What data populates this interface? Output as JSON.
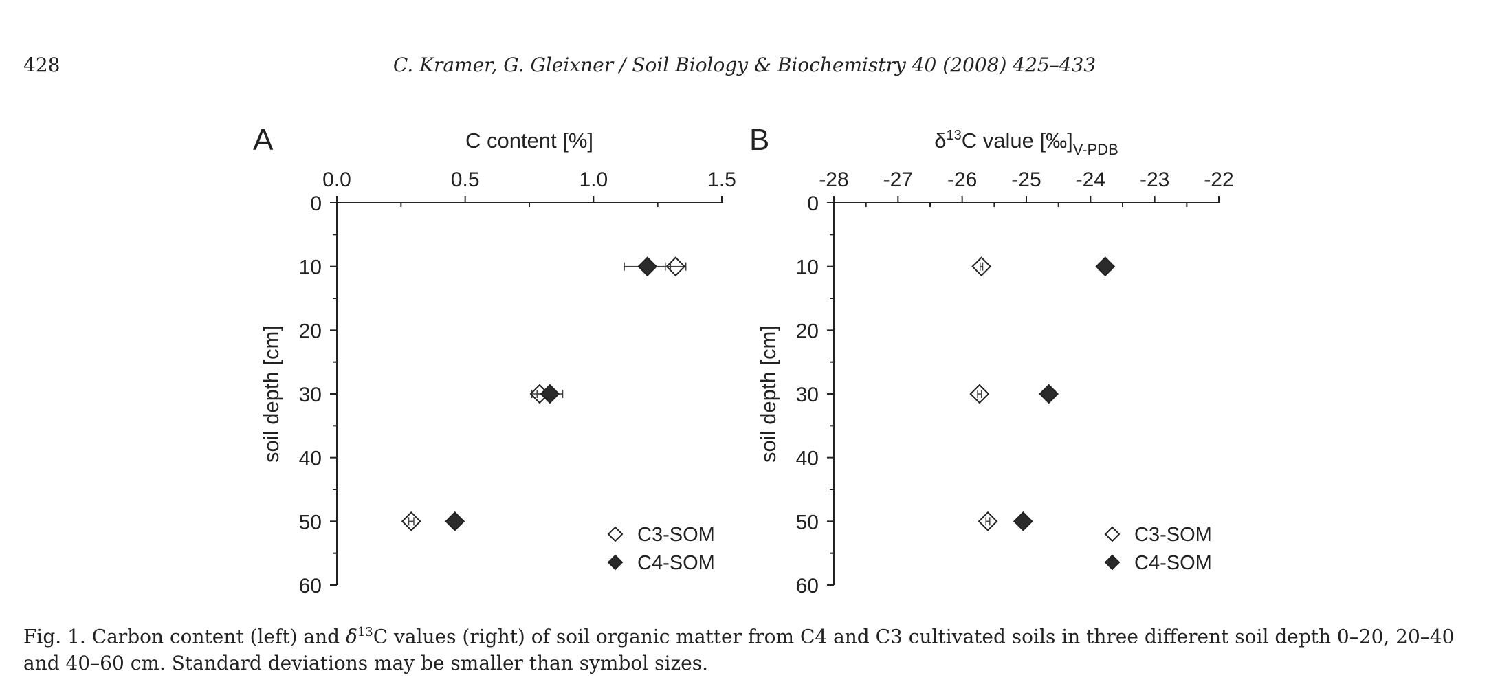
{
  "header": {
    "page_number": "428",
    "running_head": "C. Kramer, G. Gleixner / Soil Biology & Biochemistry 40 (2008) 425–433"
  },
  "caption": {
    "prefix": "Fig. 1.  Carbon content (left) and ",
    "delta": "δ",
    "sup": "13",
    "rest": "C values (right) of soil organic matter from C4 and C3 cultivated soils in three different soil depth 0–20, 20–40 and 40–60 cm. Standard deviations may be smaller than symbol sizes."
  },
  "colors": {
    "c4_fill": "#2b2b2b",
    "c3_fill": "#ffffff",
    "stroke": "#222222"
  },
  "chart_data": [
    {
      "type": "scatter",
      "panel_label": "A",
      "title": "C content [%]",
      "xlabel": "C content [%]",
      "ylabel": "soil depth [cm]",
      "xlim": [
        0,
        1.5
      ],
      "ylim": [
        0,
        60
      ],
      "y_inverted": true,
      "x_axis_position": "top",
      "x_ticks": [
        0.0,
        0.5,
        1.0,
        1.5
      ],
      "x_tick_labels": [
        "0.0",
        "0.5",
        "1.0",
        "1.5"
      ],
      "x_minor_step": 0.25,
      "y_ticks": [
        0,
        10,
        20,
        30,
        40,
        50,
        60
      ],
      "y_tick_labels": [
        "0",
        "10",
        "20",
        "30",
        "40",
        "50",
        "60"
      ],
      "y_minor_step": 5,
      "legend": {
        "position": "bottom-right",
        "entries": [
          "C3-SOM",
          "C4-SOM"
        ]
      },
      "series": [
        {
          "name": "C3-SOM",
          "marker": "open-diamond",
          "points": [
            {
              "x": 1.32,
              "y": 10,
              "err": 0.04
            },
            {
              "x": 0.79,
              "y": 30,
              "err": 0.03
            },
            {
              "x": 0.29,
              "y": 50,
              "err": 0.01
            }
          ]
        },
        {
          "name": "C4-SOM",
          "marker": "filled-diamond",
          "points": [
            {
              "x": 1.21,
              "y": 10,
              "err": 0.09
            },
            {
              "x": 0.83,
              "y": 30,
              "err": 0.05
            },
            {
              "x": 0.46,
              "y": 50,
              "err": 0.01
            }
          ]
        }
      ]
    },
    {
      "type": "scatter",
      "panel_label": "B",
      "title_main": "δ",
      "title_sup": "13",
      "title_rest": "C value [‰]",
      "title_sub": "V-PDB",
      "ylabel": "soil depth [cm]",
      "xlim": [
        -28,
        -22
      ],
      "ylim": [
        0,
        60
      ],
      "y_inverted": true,
      "x_axis_position": "top",
      "x_ticks": [
        -28,
        -27,
        -26,
        -25,
        -24,
        -23,
        -22
      ],
      "x_tick_labels": [
        "-28",
        "-27",
        "-26",
        "-25",
        "-24",
        "-23",
        "-22"
      ],
      "x_minor_step": 0.5,
      "y_ticks": [
        0,
        10,
        20,
        30,
        40,
        50,
        60
      ],
      "y_tick_labels": [
        "0",
        "10",
        "20",
        "30",
        "40",
        "50",
        "60"
      ],
      "y_minor_step": 5,
      "legend": {
        "position": "bottom-right",
        "entries": [
          "C3-SOM",
          "C4-SOM"
        ]
      },
      "series": [
        {
          "name": "C3-SOM",
          "marker": "open-diamond",
          "points": [
            {
              "x": -25.7,
              "y": 10,
              "err": 0.02
            },
            {
              "x": -25.73,
              "y": 30,
              "err": 0.03
            },
            {
              "x": -25.6,
              "y": 50,
              "err": 0.03
            }
          ]
        },
        {
          "name": "C4-SOM",
          "marker": "filled-diamond",
          "points": [
            {
              "x": -23.77,
              "y": 10,
              "err": 0.1
            },
            {
              "x": -24.65,
              "y": 30,
              "err": 0.02
            },
            {
              "x": -25.05,
              "y": 50,
              "err": 0.02
            }
          ]
        }
      ]
    }
  ]
}
